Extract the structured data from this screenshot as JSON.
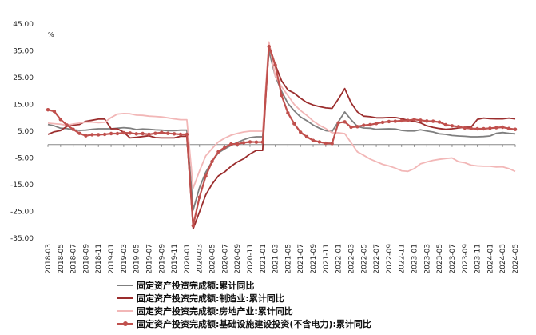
{
  "chart_data": {
    "type": "line",
    "title": "",
    "xlabel": "",
    "ylabel": "",
    "unit_label": "%",
    "ylim": [
      -35,
      45
    ],
    "y_ticks": [
      "45.00",
      "35.00",
      "25.00",
      "15.00",
      "5.00",
      "-5.00",
      "-15.00",
      "-25.00",
      "-35.00"
    ],
    "x_tick_labels": [
      "2018-03",
      "2018-05",
      "2018-07",
      "2018-09",
      "2018-11",
      "2019-01",
      "2019-03",
      "2019-05",
      "2019-07",
      "2019-09",
      "2019-11",
      "2020-01",
      "2020-03",
      "2020-05",
      "2020-07",
      "2020-09",
      "2020-11",
      "2021-01",
      "2021-03",
      "2021-05",
      "2021-07",
      "2021-09",
      "2021-11",
      "2022-01",
      "2022-03",
      "2022-05",
      "2022-07",
      "2022-09",
      "2022-11",
      "2023-01",
      "2023-03",
      "2023-05",
      "2023-07",
      "2023-09",
      "2023-11",
      "2024-01",
      "2024-03",
      "2024-05"
    ],
    "x": [
      "2018-03",
      "2018-04",
      "2018-05",
      "2018-06",
      "2018-07",
      "2018-08",
      "2018-09",
      "2018-10",
      "2018-11",
      "2018-12",
      "2019-01",
      "2019-02",
      "2019-03",
      "2019-04",
      "2019-05",
      "2019-06",
      "2019-07",
      "2019-08",
      "2019-09",
      "2019-10",
      "2019-11",
      "2019-12",
      "2020-01",
      "2020-02",
      "2020-03",
      "2020-04",
      "2020-05",
      "2020-06",
      "2020-07",
      "2020-08",
      "2020-09",
      "2020-10",
      "2020-11",
      "2020-12",
      "2021-01",
      "2021-02",
      "2021-03",
      "2021-04",
      "2021-05",
      "2021-06",
      "2021-07",
      "2021-08",
      "2021-09",
      "2021-10",
      "2021-11",
      "2021-12",
      "2022-01",
      "2022-02",
      "2022-03",
      "2022-04",
      "2022-05",
      "2022-06",
      "2022-07",
      "2022-08",
      "2022-09",
      "2022-10",
      "2022-11",
      "2022-12",
      "2023-01",
      "2023-02",
      "2023-03",
      "2023-04",
      "2023-05",
      "2023-06",
      "2023-07",
      "2023-08",
      "2023-09",
      "2023-10",
      "2023-11",
      "2023-12",
      "2024-01",
      "2024-02",
      "2024-03",
      "2024-04",
      "2024-05"
    ],
    "series": [
      {
        "name": "固定资产投资完成额:累计同比",
        "color": "#7f7f7f",
        "marker": false,
        "values": [
          7.5,
          7.0,
          6.1,
          6.0,
          5.5,
          5.3,
          5.4,
          5.7,
          5.9,
          5.9,
          5.9,
          6.1,
          6.3,
          6.1,
          5.6,
          5.8,
          5.7,
          5.5,
          5.4,
          5.2,
          5.2,
          5.4,
          5.4,
          -24.5,
          -16.1,
          -10.3,
          -6.3,
          -3.1,
          -1.6,
          -0.3,
          0.8,
          1.8,
          2.6,
          2.9,
          2.9,
          35.0,
          25.6,
          19.9,
          15.4,
          12.6,
          10.3,
          8.9,
          7.3,
          6.1,
          5.2,
          4.9,
          8.5,
          12.2,
          9.3,
          6.8,
          6.2,
          6.1,
          5.7,
          5.8,
          5.9,
          5.8,
          5.3,
          5.1,
          5.1,
          5.5,
          5.1,
          4.7,
          4.0,
          3.8,
          3.4,
          3.2,
          3.1,
          2.9,
          2.9,
          3.0,
          3.2,
          4.2,
          4.5,
          4.2,
          4.0
        ]
      },
      {
        "name": "固定资产投资完成额:制造业:累计同比",
        "color": "#9b2d2d",
        "marker": false,
        "values": [
          3.8,
          4.8,
          5.2,
          6.8,
          7.3,
          7.5,
          8.7,
          9.1,
          9.5,
          9.5,
          5.9,
          5.9,
          4.6,
          2.5,
          2.7,
          3.0,
          3.3,
          2.6,
          2.5,
          2.5,
          2.5,
          3.1,
          3.1,
          -31.5,
          -25.2,
          -18.8,
          -14.8,
          -11.7,
          -10.2,
          -8.1,
          -6.5,
          -5.3,
          -3.5,
          -2.2,
          -2.2,
          37.3,
          29.8,
          23.8,
          20.4,
          19.2,
          17.3,
          15.7,
          14.8,
          14.2,
          13.7,
          13.5,
          17.0,
          20.9,
          15.6,
          12.2,
          10.6,
          10.4,
          10.0,
          10.0,
          10.1,
          10.1,
          9.7,
          9.1,
          8.7,
          8.1,
          7.0,
          6.4,
          6.0,
          5.7,
          5.9,
          6.2,
          6.5,
          6.5,
          9.4,
          9.9,
          9.7,
          9.6,
          9.6,
          9.9,
          9.6
        ]
      },
      {
        "name": "固定资产投资完成额:房地产业:累计同比",
        "color": "#f2b7b7",
        "marker": false,
        "values": [
          8.0,
          7.8,
          7.6,
          7.2,
          7.7,
          8.0,
          8.4,
          8.4,
          8.2,
          8.3,
          10.1,
          11.4,
          11.6,
          11.5,
          11.0,
          10.9,
          10.6,
          10.5,
          10.3,
          10.0,
          9.6,
          9.3,
          9.3,
          -16.3,
          -9.9,
          -4.2,
          -1.5,
          1.0,
          2.4,
          3.5,
          4.2,
          4.7,
          5.0,
          5.0,
          5.0,
          38.3,
          25.6,
          21.6,
          18.3,
          15.0,
          12.7,
          10.9,
          8.8,
          7.2,
          6.0,
          4.4,
          4.4,
          4.1,
          0.7,
          -2.7,
          -4.0,
          -5.4,
          -6.4,
          -7.4,
          -8.0,
          -8.8,
          -9.8,
          -10.0,
          -9.0,
          -7.2,
          -6.5,
          -5.9,
          -5.5,
          -5.2,
          -5.0,
          -6.4,
          -6.8,
          -7.7,
          -8.0,
          -8.1,
          -8.1,
          -8.4,
          -8.3,
          -9.0,
          -10.0
        ]
      },
      {
        "name": "固定资产投资完成额:基础设施建设投资(不含电力):累计同比",
        "color": "#c0504d",
        "marker": true,
        "values": [
          13.0,
          12.4,
          9.4,
          7.3,
          5.7,
          4.2,
          3.3,
          3.7,
          3.7,
          3.8,
          4.1,
          4.1,
          4.4,
          4.3,
          4.0,
          4.1,
          3.8,
          4.2,
          4.5,
          4.2,
          4.0,
          3.8,
          3.8,
          -30.3,
          -19.7,
          -11.8,
          -6.3,
          -2.7,
          -1.0,
          0.2,
          0.2,
          0.7,
          1.0,
          0.9,
          0.9,
          36.6,
          29.7,
          18.4,
          11.8,
          7.8,
          4.6,
          2.9,
          1.5,
          1.0,
          0.5,
          0.4,
          8.1,
          8.5,
          6.5,
          6.7,
          7.2,
          7.4,
          7.9,
          8.3,
          8.6,
          8.7,
          8.9,
          9.0,
          9.4,
          9.1,
          8.8,
          8.7,
          8.4,
          7.4,
          7.0,
          6.7,
          6.2,
          6.0,
          5.9,
          5.9,
          6.1,
          6.3,
          6.5,
          6.0,
          5.7
        ]
      }
    ],
    "grid": false,
    "legend_position": "bottom"
  }
}
